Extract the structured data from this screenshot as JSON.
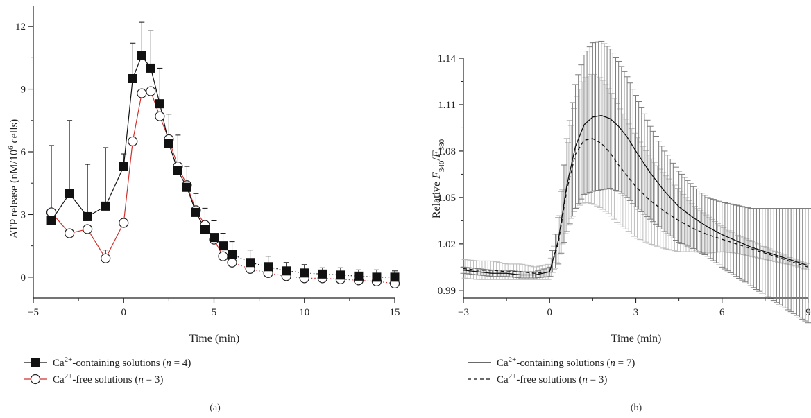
{
  "chart_data": [
    {
      "type": "scatter",
      "panel_label": "(a)",
      "xlabel": "Time (min)",
      "ylabel": "ATP release (nM/10^6 cells)",
      "ylabel_parts": {
        "main": "ATP release (nM/10",
        "sup": "6",
        "tail": " cells)"
      },
      "xlim": [
        -5,
        15
      ],
      "ylim": [
        -1,
        13
      ],
      "x_ticks": [
        -5,
        0,
        5,
        10,
        15
      ],
      "y_ticks": [
        0,
        3,
        6,
        9,
        12
      ],
      "grid": false,
      "legend_position": "bottom-left",
      "series": [
        {
          "name": "Ca2+-containing solutions (n = 4)",
          "legend": {
            "pre": "Ca",
            "sup": "2+",
            "post": "-containing solutions (",
            "n": "n",
            "eq": " = 4)"
          },
          "color": "#111111",
          "marker": "filled-square",
          "line": "solid-then-dotted",
          "x": [
            -4,
            -3,
            -2,
            -1,
            0,
            0.5,
            1,
            1.5,
            2,
            2.5,
            3,
            3.5,
            4,
            4.5,
            5,
            5.5,
            6,
            7,
            8,
            9,
            10,
            11,
            12,
            13,
            14,
            15
          ],
          "y": [
            2.7,
            4.0,
            2.9,
            3.4,
            5.3,
            9.5,
            10.6,
            10.0,
            8.3,
            6.4,
            5.1,
            4.3,
            3.1,
            2.3,
            1.9,
            1.5,
            1.1,
            0.7,
            0.5,
            0.3,
            0.2,
            0.15,
            0.1,
            0.05,
            0.0,
            0.0
          ],
          "err": [
            3.6,
            3.5,
            2.5,
            2.8,
            0.6,
            1.7,
            1.6,
            1.8,
            1.7,
            1.4,
            1.7,
            1.0,
            0.9,
            1.0,
            0.8,
            0.6,
            0.6,
            0.6,
            0.5,
            0.4,
            0.4,
            0.3,
            0.35,
            0.3,
            0.35,
            0.3
          ]
        },
        {
          "name": "Ca2+-free solutions (n = 3)",
          "legend": {
            "pre": "Ca",
            "sup": "2+",
            "post": "-free solutions (",
            "n": "n",
            "eq": " = 3)"
          },
          "color": "#d0312d",
          "marker": "open-circle",
          "line": "solid-then-dotted",
          "x": [
            -4,
            -3,
            -2,
            -1,
            0,
            0.5,
            1,
            1.5,
            2,
            2.5,
            3,
            3.5,
            4,
            4.5,
            5,
            5.5,
            6,
            7,
            8,
            9,
            10,
            11,
            12,
            13,
            14,
            15
          ],
          "y": [
            3.1,
            2.1,
            2.3,
            0.9,
            2.6,
            6.5,
            8.8,
            8.9,
            7.7,
            6.6,
            5.3,
            4.4,
            3.2,
            2.5,
            1.8,
            1.0,
            0.7,
            0.4,
            0.2,
            0.05,
            -0.05,
            -0.05,
            -0.1,
            -0.15,
            -0.2,
            -0.3
          ],
          "err": [
            0.0,
            0.0,
            0.0,
            0.4,
            0.0,
            0.0,
            0.0,
            0.0,
            0.0,
            0.0,
            0.0,
            0.0,
            0.0,
            0.0,
            0.0,
            0.0,
            0.0,
            0.0,
            0.0,
            0.0,
            0.0,
            0.0,
            0.0,
            0.0,
            0.0,
            0.0
          ]
        }
      ]
    },
    {
      "type": "line",
      "panel_label": "(b)",
      "xlabel": "Time (min)",
      "ylabel": "Relative F340/F380",
      "ylabel_parts": {
        "main": "Relative ",
        "f1": "F",
        "s1": "340",
        "slash": "/",
        "f2": "F",
        "s2": "380"
      },
      "xlim": [
        -3,
        9
      ],
      "ylim": [
        0.985,
        1.14
      ],
      "x_ticks": [
        -3,
        0,
        3,
        6,
        9
      ],
      "y_ticks": [
        0.99,
        1.02,
        1.05,
        1.08,
        1.11,
        1.14
      ],
      "grid": false,
      "legend_position": "bottom-left",
      "series": [
        {
          "name": "Ca2+-containing solutions (n = 7)",
          "legend": {
            "pre": "Ca",
            "sup": "2+",
            "post": "-containing solutions (",
            "n": "n",
            "eq": " = 7)"
          },
          "color": "#111111",
          "dash": "solid",
          "err_color": "#7d7d7d",
          "x": [
            -3,
            -2.5,
            -2,
            -1.5,
            -1,
            -0.5,
            0,
            0.3,
            0.6,
            0.9,
            1.2,
            1.5,
            1.8,
            2.1,
            2.4,
            2.7,
            3.0,
            3.5,
            4.0,
            4.5,
            5.0,
            5.5,
            6.0,
            6.5,
            7.0,
            7.5,
            8.0,
            8.5,
            9.0
          ],
          "y": [
            1.003,
            1.002,
            1.001,
            1.001,
            1.0,
            1.0,
            1.002,
            1.022,
            1.058,
            1.083,
            1.097,
            1.102,
            1.103,
            1.101,
            1.096,
            1.089,
            1.08,
            1.066,
            1.054,
            1.044,
            1.037,
            1.031,
            1.026,
            1.022,
            1.018,
            1.015,
            1.012,
            1.009,
            1.006
          ],
          "err": [
            0.002,
            0.002,
            0.002,
            0.002,
            0.002,
            0.002,
            0.003,
            0.015,
            0.03,
            0.04,
            0.045,
            0.048,
            0.048,
            0.045,
            0.042,
            0.039,
            0.036,
            0.03,
            0.026,
            0.023,
            0.02,
            0.019,
            0.021,
            0.023,
            0.025,
            0.028,
            0.031,
            0.034,
            0.037
          ]
        },
        {
          "name": "Ca2+-free solutions (n = 3)",
          "legend": {
            "pre": "Ca",
            "sup": "2+",
            "post": "-free solutions (",
            "n": "n",
            "eq": " = 3)"
          },
          "color": "#111111",
          "dash": "dashed",
          "err_color": "#bdbdbd",
          "x": [
            -3,
            -2.5,
            -2,
            -1.5,
            -1,
            -0.5,
            0,
            0.3,
            0.6,
            0.9,
            1.2,
            1.5,
            1.8,
            2.1,
            2.4,
            2.7,
            3.0,
            3.5,
            4.0,
            4.5,
            5.0,
            5.5,
            6.0,
            6.5,
            7.0,
            7.5,
            8.0,
            8.5,
            9.0
          ],
          "y": [
            1.004,
            1.003,
            1.003,
            1.002,
            1.002,
            1.001,
            1.002,
            1.02,
            1.055,
            1.078,
            1.087,
            1.088,
            1.085,
            1.079,
            1.071,
            1.064,
            1.057,
            1.048,
            1.041,
            1.035,
            1.03,
            1.026,
            1.023,
            1.02,
            1.017,
            1.014,
            1.011,
            1.008,
            1.005
          ],
          "err": [
            0.006,
            0.006,
            0.006,
            0.005,
            0.005,
            0.004,
            0.005,
            0.01,
            0.025,
            0.035,
            0.04,
            0.042,
            0.042,
            0.04,
            0.038,
            0.035,
            0.033,
            0.028,
            0.024,
            0.02,
            0.015,
            0.012,
            0.008,
            0.006,
            0.005,
            0.004,
            0.003,
            0.002,
            0.002
          ]
        }
      ]
    }
  ]
}
